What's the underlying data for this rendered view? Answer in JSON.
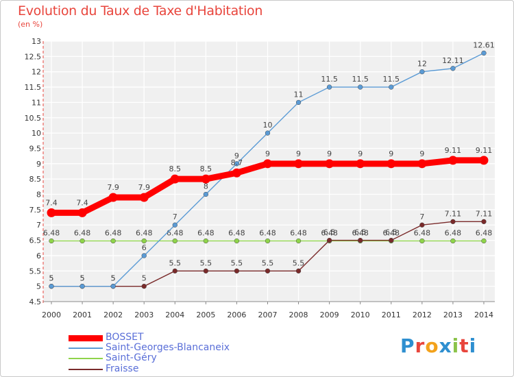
{
  "title": "Evolution du Taux de Taxe d'Habitation",
  "unit_label": "(en %)",
  "logo_text": "Proxiti",
  "chart_data": {
    "type": "line",
    "title": "Evolution du Taux de Taxe d'Habitation",
    "ylabel": "(en %)",
    "ylim": [
      4.5,
      13
    ],
    "yticks": [
      4.5,
      5,
      5.5,
      6,
      6.5,
      7,
      7.5,
      8,
      8.5,
      9,
      9.5,
      10,
      10.5,
      11,
      11.5,
      12,
      12.5,
      13
    ],
    "ytick_labels": [
      "4.5",
      "5",
      "5.5",
      "6",
      "6.5",
      "7",
      "7.5",
      "8",
      "8.5",
      "9",
      "9.5",
      "10",
      "10.5",
      "11",
      "11.5",
      "12",
      "12.5",
      "13"
    ],
    "x": [
      "2000",
      "2001",
      "2002",
      "2003",
      "2004",
      "2005",
      "2006",
      "2007",
      "2008",
      "2009",
      "2010",
      "2011",
      "2012",
      "2013",
      "2014"
    ],
    "grid": true,
    "legend_position": "bottom-left",
    "series": [
      {
        "name": "Saint-Géry",
        "color": "#8fd44a",
        "values": [
          6.48,
          6.48,
          6.48,
          6.48,
          6.48,
          6.48,
          6.48,
          6.48,
          6.48,
          6.48,
          6.48,
          6.48,
          6.48,
          6.48,
          6.48
        ],
        "labels": [
          "6.48",
          "6.48",
          "6.48",
          "6.48",
          "6.48",
          "6.48",
          "6.48",
          "6.48",
          "6.48",
          "6.48",
          "6.48",
          "6.48",
          "6.48",
          "6.48",
          "6.48"
        ]
      },
      {
        "name": "Fraisse",
        "color": "#7a2a2a",
        "values": [
          5,
          5,
          5,
          5,
          5.5,
          5.5,
          5.5,
          5.5,
          5.5,
          6.5,
          6.5,
          6.5,
          7,
          7.11,
          7.11
        ],
        "labels": [
          "5",
          "5",
          "5",
          "5",
          "5.5",
          "5.5",
          "5.5",
          "5.5",
          "5.5",
          "6.5",
          "6.5",
          "6.5",
          "7",
          "7.11",
          "7.11"
        ]
      },
      {
        "name": "Saint-Georges-Blancaneix",
        "color": "#5b9bd5",
        "values": [
          5,
          5,
          5,
          6,
          7,
          8,
          9,
          10,
          11,
          11.5,
          11.5,
          11.5,
          12,
          12.11,
          12.61
        ],
        "labels": [
          "5",
          "5",
          "5",
          "6",
          "7",
          "8",
          "9",
          "10",
          "11",
          "11.5",
          "11.5",
          "11.5",
          "12",
          "12.11",
          "12.61"
        ]
      },
      {
        "name": "BOSSET",
        "color": "#ff0000",
        "values": [
          7.4,
          7.4,
          7.9,
          7.9,
          8.5,
          8.5,
          8.7,
          9,
          9,
          9,
          9,
          9,
          9,
          9.11,
          9.11
        ],
        "labels": [
          "7.4",
          "7.4",
          "7.9",
          "7.9",
          "8.5",
          "8.5",
          "8.7",
          "9",
          "9",
          "9",
          "9",
          "9",
          "9",
          "9.11",
          "9.11"
        ]
      }
    ],
    "legend": [
      {
        "name": "BOSSET",
        "color": "#ff0000"
      },
      {
        "name": "Saint-Georges-Blancaneix",
        "color": "#5b9bd5"
      },
      {
        "name": "Saint-Géry",
        "color": "#8fd44a"
      },
      {
        "name": "Fraisse",
        "color": "#7a2a2a"
      }
    ]
  }
}
